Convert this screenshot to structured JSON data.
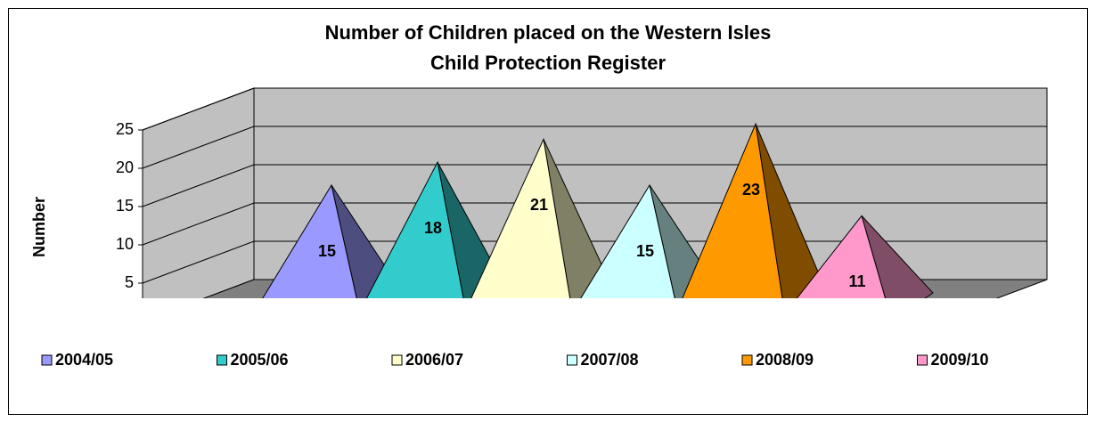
{
  "chart_data": {
    "type": "pyramid3d",
    "title": [
      "Number of Children placed on the Western Isles",
      "Child Protection Register"
    ],
    "y_label": "Number",
    "categories": [
      "2004/05",
      "2005/06",
      "2006/07",
      "2007/08",
      "2008/09",
      "2009/10"
    ],
    "values": [
      15,
      18,
      21,
      15,
      23,
      11
    ],
    "colors": [
      "#9999ff",
      "#33cccc",
      "#ffffcc",
      "#ccffff",
      "#ff9900",
      "#ff99cc"
    ],
    "ylim": [
      0,
      25
    ],
    "yticks": [
      5,
      10,
      15,
      20,
      25
    ],
    "grid": true,
    "legend": "bottom"
  }
}
